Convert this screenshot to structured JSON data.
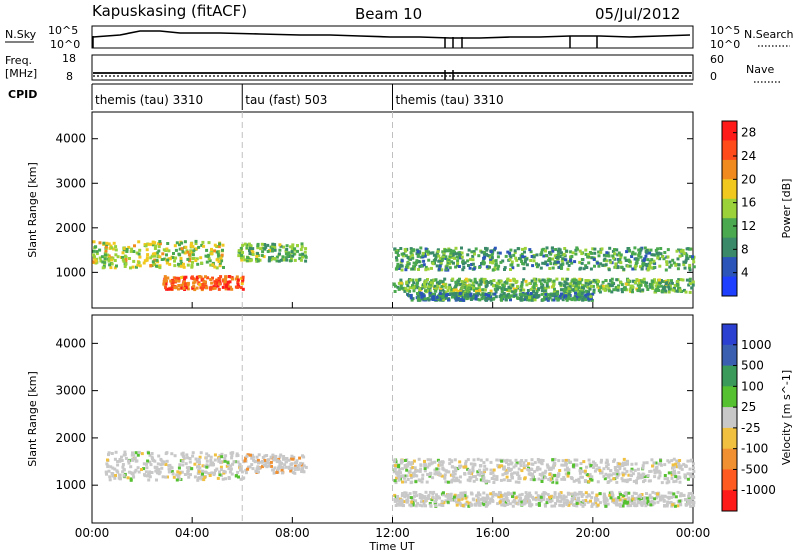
{
  "header": {
    "station": "Kapuskasing (fitACF)",
    "beam": "Beam 10",
    "date": "05/Jul/2012"
  },
  "strip_panels": {
    "nsky_label": "N.Sky",
    "nsky_ticks": [
      "10^5",
      "10^0"
    ],
    "nsearch_label": "N.Search",
    "nsearch_ticks": [
      "10^5",
      "10^0"
    ],
    "freq_label_1": "Freq.",
    "freq_label_2": "[MHz]",
    "freq_ticks": [
      "18",
      "8"
    ],
    "nave_label": "Nave",
    "nave_ticks": [
      "60",
      "0"
    ],
    "cpid_label": "CPID"
  },
  "cpid_segments": [
    {
      "label": "themis (tau) 3310",
      "start_hour": 0,
      "end_hour": 6
    },
    {
      "label": "tau (fast) 503",
      "start_hour": 6,
      "end_hour": 12
    },
    {
      "label": "themis (tau) 3310",
      "start_hour": 12,
      "end_hour": 24
    }
  ],
  "colors": {
    "power_scale": [
      "#1f3fff",
      "#2b55b8",
      "#3a8a6a",
      "#4aa84e",
      "#9bd23a",
      "#f0c81e",
      "#f08a1e",
      "#ff4a1a",
      "#ff1a1a"
    ],
    "velocity_scale": [
      "#2b3fd0",
      "#3a5fb0",
      "#3a9a5a",
      "#55c030",
      "#c8c8c8",
      "#f0c040",
      "#f09030",
      "#ff5a20",
      "#ff1a1a"
    ],
    "dashed_line": "#c0c0c0"
  },
  "chart_data": [
    {
      "type": "heatmap",
      "title": "",
      "xlabel": "Time UT",
      "ylabel": "Slant Range [km]",
      "xlim": [
        0,
        24
      ],
      "ylim": [
        200,
        4600
      ],
      "x_ticks": [
        "00:00",
        "04:00",
        "08:00",
        "12:00",
        "16:00",
        "20:00",
        "00:00"
      ],
      "y_ticks": [
        "1000",
        "2000",
        "3000",
        "4000"
      ],
      "colorbar": {
        "label": "Power [dB]",
        "ticks": [
          "4",
          "8",
          "12",
          "16",
          "20",
          "24",
          "28"
        ],
        "range": [
          0,
          30
        ]
      },
      "scatter_bands": [
        {
          "t_start": 0.0,
          "t_end": 5.2,
          "range_center": 1400,
          "range_width": 300,
          "level": 16
        },
        {
          "t_start": 2.8,
          "t_end": 6.0,
          "range_center": 760,
          "range_width": 150,
          "level": 26
        },
        {
          "t_start": 5.8,
          "t_end": 8.5,
          "range_center": 1450,
          "range_width": 200,
          "level": 12
        },
        {
          "t_start": 12.0,
          "t_end": 24.0,
          "range_center": 1300,
          "range_width": 250,
          "level": 10
        },
        {
          "t_start": 12.0,
          "t_end": 24.0,
          "range_center": 700,
          "range_width": 150,
          "level": 12
        },
        {
          "t_start": 12.5,
          "t_end": 20.0,
          "range_center": 450,
          "range_width": 80,
          "level": 8
        }
      ]
    },
    {
      "type": "heatmap",
      "title": "",
      "xlabel": "Time UT",
      "ylabel": "Slant Range [km]",
      "xlim": [
        0,
        24
      ],
      "ylim": [
        200,
        4600
      ],
      "x_ticks": [
        "00:00",
        "04:00",
        "08:00",
        "12:00",
        "16:00",
        "20:00",
        "00:00"
      ],
      "y_ticks": [
        "1000",
        "2000",
        "3000",
        "4000"
      ],
      "colorbar": {
        "label": "Velocity [m s^-1]",
        "ticks": [
          "1000",
          "500",
          "100",
          "25",
          "-25",
          "-100",
          "-500",
          "-1000"
        ]
      },
      "scatter_bands": [
        {
          "t_start": 0.5,
          "t_end": 6.0,
          "range_center": 1400,
          "range_width": 300,
          "level": 0
        },
        {
          "t_start": 6.0,
          "t_end": 8.5,
          "range_center": 1450,
          "range_width": 200,
          "level": -100
        },
        {
          "t_start": 12.0,
          "t_end": 24.0,
          "range_center": 1300,
          "range_width": 250,
          "level": 0
        },
        {
          "t_start": 12.0,
          "t_end": 24.0,
          "range_center": 700,
          "range_width": 150,
          "level": 0
        }
      ]
    }
  ],
  "x_axis_title": "Time UT"
}
